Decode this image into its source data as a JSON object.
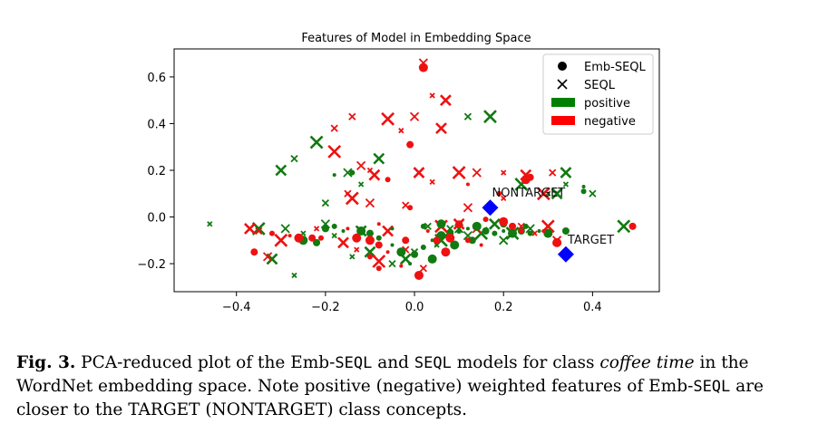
{
  "chart_data": {
    "type": "scatter",
    "title": "Features of Model in Embedding Space",
    "xlim": [
      -0.54,
      0.55
    ],
    "ylim": [
      -0.32,
      0.72
    ],
    "xticks": [
      "−0.4",
      "−0.2",
      "0.0",
      "0.2",
      "0.4"
    ],
    "xtick_values": [
      -0.4,
      -0.2,
      0.0,
      0.2,
      0.4
    ],
    "yticks": [
      "−0.2",
      "0.0",
      "0.2",
      "0.4",
      "0.6"
    ],
    "ytick_values": [
      -0.2,
      0.0,
      0.2,
      0.4,
      0.6
    ],
    "legend": {
      "placement": "top-right",
      "entries": [
        {
          "label": "Emb-SEQL",
          "marker": "circle"
        },
        {
          "label": "SEQL",
          "marker": "x"
        },
        {
          "label": "positive",
          "color": "#007f00"
        },
        {
          "label": "negative",
          "color": "#ff0000"
        }
      ]
    },
    "colors": {
      "positive": "#117a11",
      "negative": "#ee1111",
      "class": "#0000ff"
    },
    "annotations": [
      {
        "label": "NONTARGET",
        "x": 0.17,
        "y": 0.04
      },
      {
        "label": "TARGET",
        "x": 0.34,
        "y": -0.16
      }
    ],
    "series": [
      {
        "name": "SEQL positive",
        "marker": "x",
        "color": "positive",
        "points": [
          [
            -0.46,
            -0.03
          ],
          [
            -0.3,
            0.2
          ],
          [
            -0.27,
            0.25
          ],
          [
            -0.22,
            0.32
          ],
          [
            -0.15,
            0.19
          ],
          [
            -0.12,
            0.14
          ],
          [
            -0.08,
            0.25
          ],
          [
            0.12,
            0.43
          ],
          [
            0.17,
            0.43
          ],
          [
            0.1,
            -0.05
          ],
          [
            0.05,
            -0.12
          ],
          [
            -0.02,
            -0.18
          ],
          [
            0.0,
            -0.15
          ],
          [
            0.15,
            -0.07
          ],
          [
            0.2,
            -0.1
          ],
          [
            0.3,
            0.1
          ],
          [
            0.34,
            0.19
          ],
          [
            0.4,
            0.1
          ],
          [
            0.47,
            -0.04
          ],
          [
            -0.2,
            -0.03
          ],
          [
            -0.18,
            -0.08
          ],
          [
            -0.1,
            -0.15
          ],
          [
            -0.05,
            -0.2
          ],
          [
            -0.35,
            -0.05
          ],
          [
            -0.3,
            -0.1
          ],
          [
            -0.27,
            -0.25
          ],
          [
            -0.32,
            -0.18
          ],
          [
            0.08,
            -0.05
          ],
          [
            0.22,
            -0.07
          ],
          [
            0.26,
            -0.05
          ],
          [
            -0.25,
            -0.07
          ],
          [
            -0.12,
            -0.06
          ],
          [
            0.03,
            -0.04
          ],
          [
            0.06,
            -0.1
          ],
          [
            0.12,
            -0.08
          ],
          [
            0.34,
            0.14
          ],
          [
            0.32,
            0.1
          ],
          [
            -0.2,
            0.06
          ],
          [
            0.24,
            0.14
          ],
          [
            -0.29,
            -0.05
          ],
          [
            -0.14,
            -0.17
          ],
          [
            0.18,
            -0.03
          ]
        ]
      },
      {
        "name": "SEQL negative",
        "marker": "x",
        "color": "negative",
        "points": [
          [
            0.02,
            0.66
          ],
          [
            0.04,
            0.52
          ],
          [
            0.07,
            0.5
          ],
          [
            -0.14,
            0.43
          ],
          [
            -0.06,
            0.42
          ],
          [
            0.0,
            0.43
          ],
          [
            -0.03,
            0.37
          ],
          [
            0.06,
            0.38
          ],
          [
            -0.18,
            0.38
          ],
          [
            -0.18,
            0.28
          ],
          [
            -0.12,
            0.22
          ],
          [
            -0.1,
            0.2
          ],
          [
            -0.09,
            0.18
          ],
          [
            -0.15,
            0.1
          ],
          [
            -0.14,
            0.08
          ],
          [
            -0.1,
            0.06
          ],
          [
            0.04,
            0.15
          ],
          [
            0.01,
            0.19
          ],
          [
            -0.02,
            0.05
          ],
          [
            0.1,
            0.19
          ],
          [
            0.14,
            0.19
          ],
          [
            0.2,
            0.19
          ],
          [
            0.25,
            0.18
          ],
          [
            0.31,
            0.19
          ],
          [
            0.29,
            0.1
          ],
          [
            0.12,
            0.04
          ],
          [
            0.2,
            0.08
          ],
          [
            -0.37,
            -0.05
          ],
          [
            -0.35,
            -0.06
          ],
          [
            -0.3,
            -0.1
          ],
          [
            -0.33,
            -0.17
          ],
          [
            -0.13,
            -0.14
          ],
          [
            0.1,
            -0.03
          ],
          [
            0.24,
            -0.04
          ],
          [
            0.3,
            -0.04
          ],
          [
            0.32,
            -0.1
          ],
          [
            -0.22,
            -0.05
          ],
          [
            -0.06,
            -0.06
          ],
          [
            0.02,
            -0.22
          ],
          [
            0.06,
            -0.04
          ],
          [
            0.14,
            -0.05
          ],
          [
            0.27,
            -0.07
          ],
          [
            -0.16,
            -0.11
          ],
          [
            -0.02,
            -0.14
          ],
          [
            -0.08,
            -0.19
          ]
        ]
      },
      {
        "name": "Emb-SEQL positive",
        "marker": "circle",
        "color": "positive",
        "points": [
          [
            -0.2,
            -0.05
          ],
          [
            -0.18,
            -0.04
          ],
          [
            -0.16,
            -0.06
          ],
          [
            -0.12,
            -0.06
          ],
          [
            -0.1,
            -0.07
          ],
          [
            -0.08,
            -0.09
          ],
          [
            -0.05,
            -0.12
          ],
          [
            -0.03,
            -0.15
          ],
          [
            0.0,
            -0.16
          ],
          [
            0.02,
            -0.13
          ],
          [
            0.04,
            -0.1
          ],
          [
            0.06,
            -0.08
          ],
          [
            0.08,
            -0.07
          ],
          [
            0.1,
            -0.06
          ],
          [
            0.12,
            -0.05
          ],
          [
            0.14,
            -0.04
          ],
          [
            0.16,
            -0.06
          ],
          [
            0.18,
            -0.07
          ],
          [
            0.2,
            -0.06
          ],
          [
            0.22,
            -0.07
          ],
          [
            0.24,
            -0.06
          ],
          [
            0.26,
            -0.07
          ],
          [
            0.28,
            -0.06
          ],
          [
            0.3,
            -0.07
          ],
          [
            0.34,
            -0.06
          ],
          [
            0.38,
            0.11
          ],
          [
            0.38,
            0.13
          ],
          [
            -0.25,
            -0.1
          ],
          [
            -0.22,
            -0.11
          ],
          [
            0.02,
            -0.04
          ],
          [
            -0.05,
            -0.05
          ],
          [
            0.09,
            -0.12
          ],
          [
            0.13,
            -0.1
          ],
          [
            -0.14,
            0.19
          ],
          [
            -0.18,
            0.18
          ],
          [
            0.06,
            -0.03
          ],
          [
            0.2,
            -0.03
          ],
          [
            0.25,
            -0.04
          ],
          [
            -0.01,
            -0.2
          ],
          [
            0.04,
            -0.18
          ]
        ]
      },
      {
        "name": "Emb-SEQL negative",
        "marker": "circle",
        "color": "negative",
        "points": [
          [
            0.02,
            0.64
          ],
          [
            -0.01,
            0.31
          ],
          [
            -0.06,
            0.16
          ],
          [
            0.12,
            0.14
          ],
          [
            0.25,
            0.16
          ],
          [
            0.26,
            0.17
          ],
          [
            -0.01,
            0.04
          ],
          [
            0.18,
            0.04
          ],
          [
            -0.1,
            -0.1
          ],
          [
            -0.08,
            -0.12
          ],
          [
            -0.08,
            -0.22
          ],
          [
            -0.03,
            -0.21
          ],
          [
            0.01,
            -0.25
          ],
          [
            0.05,
            -0.1
          ],
          [
            0.12,
            -0.1
          ],
          [
            0.15,
            -0.12
          ],
          [
            0.2,
            -0.02
          ],
          [
            0.22,
            -0.04
          ],
          [
            0.24,
            -0.06
          ],
          [
            0.29,
            -0.06
          ],
          [
            0.32,
            -0.11
          ],
          [
            0.49,
            -0.04
          ],
          [
            -0.32,
            -0.07
          ],
          [
            -0.28,
            -0.08
          ],
          [
            -0.26,
            -0.09
          ],
          [
            -0.23,
            -0.09
          ],
          [
            -0.21,
            -0.09
          ],
          [
            -0.15,
            -0.05
          ],
          [
            -0.13,
            -0.09
          ],
          [
            -0.36,
            -0.15
          ],
          [
            -0.1,
            -0.17
          ],
          [
            -0.06,
            -0.15
          ],
          [
            0.07,
            -0.15
          ],
          [
            0.1,
            -0.03
          ],
          [
            0.16,
            -0.01
          ],
          [
            0.03,
            -0.06
          ],
          [
            0.08,
            -0.09
          ],
          [
            -0.02,
            -0.1
          ],
          [
            0.19,
            0.1
          ],
          [
            -0.08,
            -0.03
          ]
        ]
      },
      {
        "name": "Class concepts",
        "marker": "diamond",
        "color": "class",
        "points": [
          [
            0.17,
            0.04
          ],
          [
            0.34,
            -0.16
          ]
        ]
      }
    ]
  },
  "caption": {
    "fig_label": "Fig. 3.",
    "t1": " PCA-reduced plot of the Emb-",
    "m1": "SEQL",
    "t2": " and ",
    "m2": "SEQL",
    "t3": " models for class ",
    "italic": "coffee time",
    "t4": " in the WordNet embedding space. Note positive (negative) weighted features of Emb-",
    "m3": "SEQL",
    "t5": " are closer to the TARGET (NONTARGET) class concepts."
  }
}
